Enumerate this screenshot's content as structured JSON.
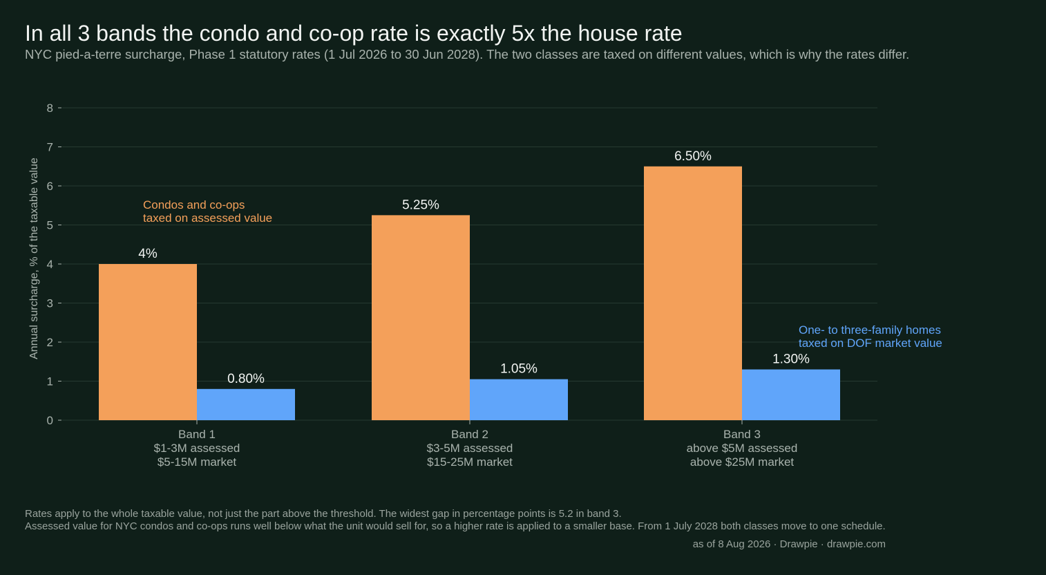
{
  "title": "In all 3 bands the condo and co-op rate is exactly 5x the house rate",
  "subtitle": "NYC pied-a-terre surcharge, Phase 1 statutory rates (1 Jul 2026 to 30 Jun 2028). The two classes are taxed on different values, which is why the rates differ.",
  "chart_data": {
    "type": "bar",
    "categories": [
      [
        "Band 1",
        "$1-3M assessed",
        "$5-15M market"
      ],
      [
        "Band 2",
        "$3-5M assessed",
        "$15-25M market"
      ],
      [
        "Band 3",
        "above $5M assessed",
        "above $25M market"
      ]
    ],
    "series": [
      {
        "values": [
          4,
          5.25,
          6.5
        ],
        "labels": [
          "4%",
          "5.25%",
          "6.50%"
        ],
        "color": "#f4a05a"
      },
      {
        "values": [
          0.8,
          1.05,
          1.3
        ],
        "labels": [
          "0.80%",
          "1.05%",
          "1.30%"
        ],
        "color": "#60a5fa"
      }
    ],
    "annotations": [
      {
        "lines": [
          "Condos and co-ops",
          "taxed on assessed value"
        ],
        "color": "#f4a05a"
      },
      {
        "lines": [
          "One- to three-family homes",
          "taxed on DOF market value"
        ],
        "color": "#60a5fa"
      }
    ],
    "ylabel": "Annual surcharge, % of the taxable value",
    "ylim": [
      0,
      8
    ],
    "yticks": [
      "0",
      "1",
      "2",
      "3",
      "4",
      "5",
      "6",
      "7",
      "8"
    ],
    "grid": true
  },
  "footnotes": [
    "Rates apply to the whole taxable value, not just the part above the threshold. The widest gap in percentage points is 5.2 in band 3.",
    "Assessed value for NYC condos and co-ops runs well below what the unit would sell for, so a higher rate is applied to a smaller base. From 1 July 2028 both classes move to one schedule."
  ],
  "credit": "as of 8 Aug 2026  ·  Drawpie · drawpie.com"
}
